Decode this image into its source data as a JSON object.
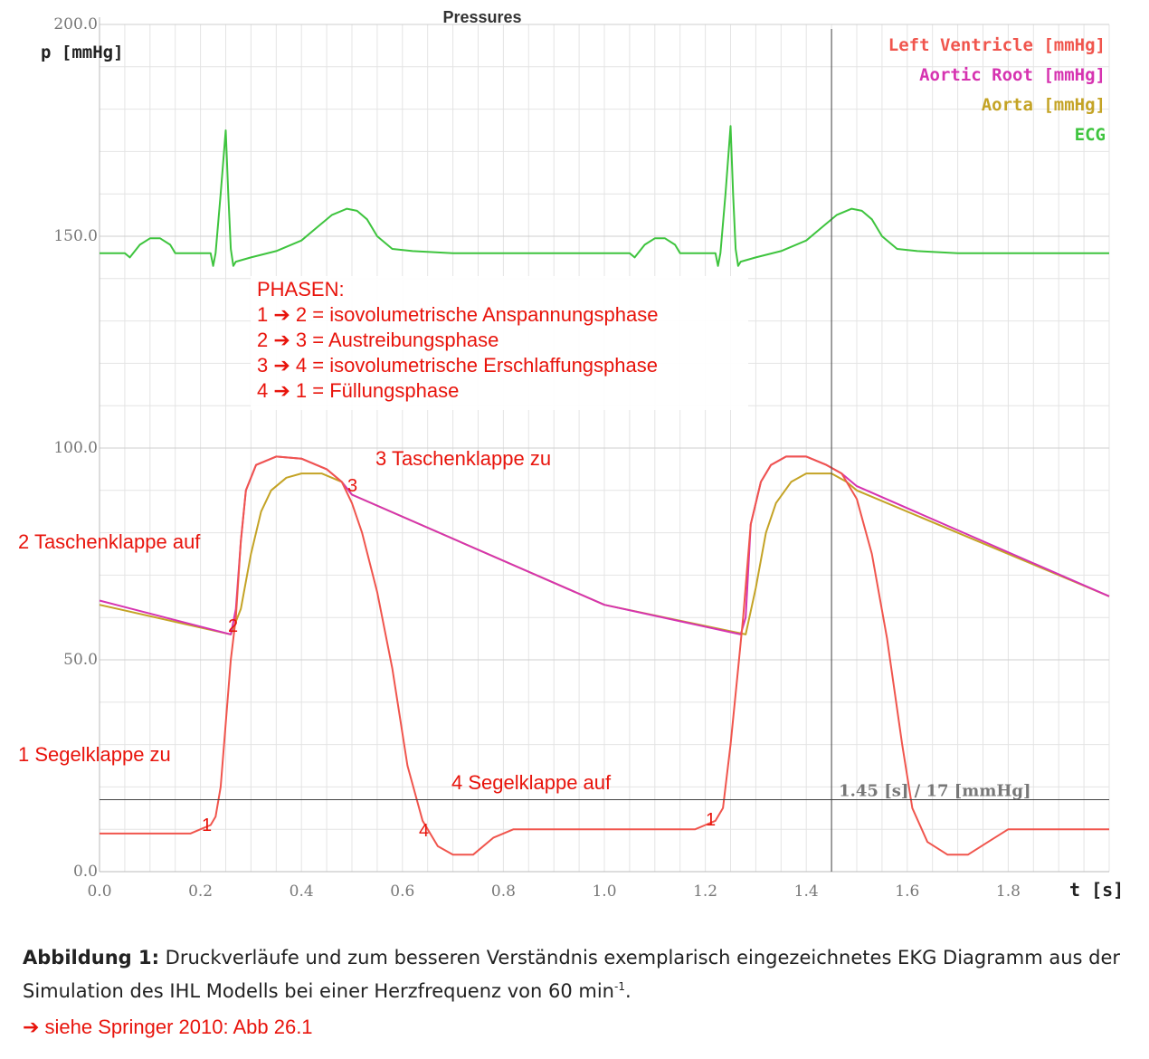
{
  "chart_data": {
    "type": "line",
    "title": "Pressures",
    "ylabel": "p [mmHg]",
    "xlabel": "t [s]",
    "xlim": [
      0.0,
      2.0
    ],
    "ylim": [
      0.0,
      200.0
    ],
    "x_ticks": [
      "0.0",
      "0.2",
      "0.4",
      "0.6",
      "0.8",
      "1.0",
      "1.2",
      "1.4",
      "1.6",
      "1.8"
    ],
    "y_ticks": [
      {
        "v": 200.0,
        "label": "200.0"
      },
      {
        "v": 150.0,
        "label": "150.0"
      },
      {
        "v": 100.0,
        "label": "100.0"
      },
      {
        "v": 50.0,
        "label": "50.0"
      },
      {
        "v": 0.0,
        "label": "0.0"
      }
    ],
    "grid": true,
    "legend_position": "top-right",
    "series": [
      {
        "name": "Left Ventricle [mmHg]",
        "color": "#f0554d",
        "points": [
          [
            0.0,
            9
          ],
          [
            0.18,
            9
          ],
          [
            0.2,
            10
          ],
          [
            0.22,
            11
          ],
          [
            0.23,
            13
          ],
          [
            0.24,
            20
          ],
          [
            0.25,
            35
          ],
          [
            0.26,
            50
          ],
          [
            0.27,
            60
          ],
          [
            0.28,
            78
          ],
          [
            0.29,
            90
          ],
          [
            0.31,
            96
          ],
          [
            0.35,
            98
          ],
          [
            0.4,
            97.5
          ],
          [
            0.45,
            95
          ],
          [
            0.48,
            92
          ],
          [
            0.5,
            87
          ],
          [
            0.52,
            80
          ],
          [
            0.55,
            66
          ],
          [
            0.58,
            48
          ],
          [
            0.61,
            25
          ],
          [
            0.64,
            12
          ],
          [
            0.67,
            6
          ],
          [
            0.7,
            4
          ],
          [
            0.74,
            4
          ],
          [
            0.78,
            8
          ],
          [
            0.82,
            10
          ],
          [
            1.0,
            10
          ],
          [
            1.18,
            10
          ],
          [
            1.2,
            11
          ],
          [
            1.22,
            12
          ],
          [
            1.235,
            15
          ],
          [
            1.25,
            30
          ],
          [
            1.265,
            48
          ],
          [
            1.275,
            60
          ],
          [
            1.29,
            82
          ],
          [
            1.31,
            92
          ],
          [
            1.33,
            96
          ],
          [
            1.36,
            98
          ],
          [
            1.4,
            98
          ],
          [
            1.44,
            96
          ],
          [
            1.47,
            94
          ],
          [
            1.5,
            88
          ],
          [
            1.53,
            75
          ],
          [
            1.56,
            55
          ],
          [
            1.59,
            30
          ],
          [
            1.61,
            15
          ],
          [
            1.64,
            7
          ],
          [
            1.68,
            4
          ],
          [
            1.72,
            4
          ],
          [
            1.76,
            7
          ],
          [
            1.8,
            10
          ],
          [
            2.0,
            10
          ]
        ]
      },
      {
        "name": "Aortic Root [mmHg]",
        "color": "#d633b0",
        "points": [
          [
            0.0,
            64
          ],
          [
            0.26,
            56
          ],
          [
            0.27,
            62
          ],
          [
            0.28,
            78
          ],
          [
            0.29,
            90
          ],
          [
            0.31,
            96
          ],
          [
            0.35,
            98
          ],
          [
            0.4,
            97.5
          ],
          [
            0.45,
            95
          ],
          [
            0.48,
            92
          ],
          [
            0.5,
            89
          ],
          [
            1.0,
            63
          ],
          [
            1.27,
            56
          ],
          [
            1.28,
            60
          ],
          [
            1.29,
            82
          ],
          [
            1.31,
            92
          ],
          [
            1.33,
            96
          ],
          [
            1.36,
            98
          ],
          [
            1.4,
            98
          ],
          [
            1.44,
            96
          ],
          [
            1.47,
            94
          ],
          [
            1.5,
            91
          ],
          [
            2.0,
            65
          ]
        ]
      },
      {
        "name": "Aorta [mmHg]",
        "color": "#c4a325",
        "points": [
          [
            0.0,
            63
          ],
          [
            0.26,
            56
          ],
          [
            0.28,
            62
          ],
          [
            0.3,
            75
          ],
          [
            0.32,
            85
          ],
          [
            0.34,
            90
          ],
          [
            0.37,
            93
          ],
          [
            0.4,
            94
          ],
          [
            0.44,
            94
          ],
          [
            0.48,
            92
          ],
          [
            0.5,
            89
          ],
          [
            1.0,
            63
          ],
          [
            1.28,
            56
          ],
          [
            1.3,
            67
          ],
          [
            1.32,
            80
          ],
          [
            1.34,
            87
          ],
          [
            1.37,
            92
          ],
          [
            1.4,
            94
          ],
          [
            1.45,
            94
          ],
          [
            1.48,
            92
          ],
          [
            1.5,
            90
          ],
          [
            2.0,
            65
          ]
        ]
      },
      {
        "name": "ECG",
        "color": "#3ec43e",
        "points": [
          [
            0.0,
            146
          ],
          [
            0.05,
            146
          ],
          [
            0.06,
            145
          ],
          [
            0.08,
            148
          ],
          [
            0.1,
            149.5
          ],
          [
            0.12,
            149.5
          ],
          [
            0.14,
            148
          ],
          [
            0.15,
            146
          ],
          [
            0.2,
            146
          ],
          [
            0.22,
            146
          ],
          [
            0.225,
            143
          ],
          [
            0.23,
            146
          ],
          [
            0.24,
            160
          ],
          [
            0.25,
            175
          ],
          [
            0.255,
            160
          ],
          [
            0.26,
            147
          ],
          [
            0.265,
            143
          ],
          [
            0.27,
            144
          ],
          [
            0.3,
            145
          ],
          [
            0.35,
            146.5
          ],
          [
            0.4,
            149
          ],
          [
            0.43,
            152
          ],
          [
            0.46,
            155
          ],
          [
            0.49,
            156.5
          ],
          [
            0.51,
            156
          ],
          [
            0.53,
            154
          ],
          [
            0.55,
            150
          ],
          [
            0.58,
            147
          ],
          [
            0.62,
            146.5
          ],
          [
            0.7,
            146
          ],
          [
            0.8,
            146
          ],
          [
            0.9,
            146
          ],
          [
            1.05,
            146
          ],
          [
            1.06,
            145
          ],
          [
            1.08,
            148
          ],
          [
            1.1,
            149.5
          ],
          [
            1.12,
            149.5
          ],
          [
            1.14,
            148
          ],
          [
            1.15,
            146
          ],
          [
            1.2,
            146
          ],
          [
            1.22,
            146
          ],
          [
            1.225,
            143
          ],
          [
            1.23,
            146
          ],
          [
            1.24,
            160
          ],
          [
            1.25,
            176
          ],
          [
            1.255,
            160
          ],
          [
            1.26,
            147
          ],
          [
            1.265,
            143
          ],
          [
            1.27,
            144
          ],
          [
            1.3,
            145
          ],
          [
            1.35,
            146.5
          ],
          [
            1.4,
            149
          ],
          [
            1.43,
            152
          ],
          [
            1.46,
            155
          ],
          [
            1.49,
            156.5
          ],
          [
            1.51,
            156
          ],
          [
            1.53,
            154
          ],
          [
            1.55,
            150
          ],
          [
            1.58,
            147
          ],
          [
            1.62,
            146.5
          ],
          [
            1.7,
            146
          ],
          [
            1.8,
            146
          ],
          [
            2.0,
            146
          ]
        ]
      }
    ],
    "cursor": {
      "x": 1.45,
      "y": 17,
      "label": "1.45 [s] / 17 [mmHg]"
    },
    "phases_box": {
      "title": "PHASEN:",
      "lines": [
        "1 ➔ 2 = isovolumetrische Anspannungsphase",
        "2 ➔ 3 = Austreibungsphase",
        "3 ➔ 4 = isovolumetrische Erschlaffungsphase",
        "4 ➔ 1 = Füllungsphase"
      ]
    },
    "annotations": [
      {
        "text": "2 Taschenklappe auf"
      },
      {
        "text": "3 Taschenklappe zu"
      },
      {
        "text": "1 Segelklappe zu"
      },
      {
        "text": "4 Segelklappe auf"
      }
    ],
    "point_markers": [
      "1",
      "2",
      "3",
      "4",
      "1"
    ]
  },
  "caption": {
    "label": "Abbildung 1:",
    "text": " Druckverläufe und zum besseren Verständnis exemplarisch eingezeichnetes EKG Diagramm aus der Simulation des IHL Modells bei einer Herzfrequenz von 60 min",
    "sup": "-1",
    "end": "."
  },
  "source": "➔ siehe Springer 2010: Abb 26.1"
}
